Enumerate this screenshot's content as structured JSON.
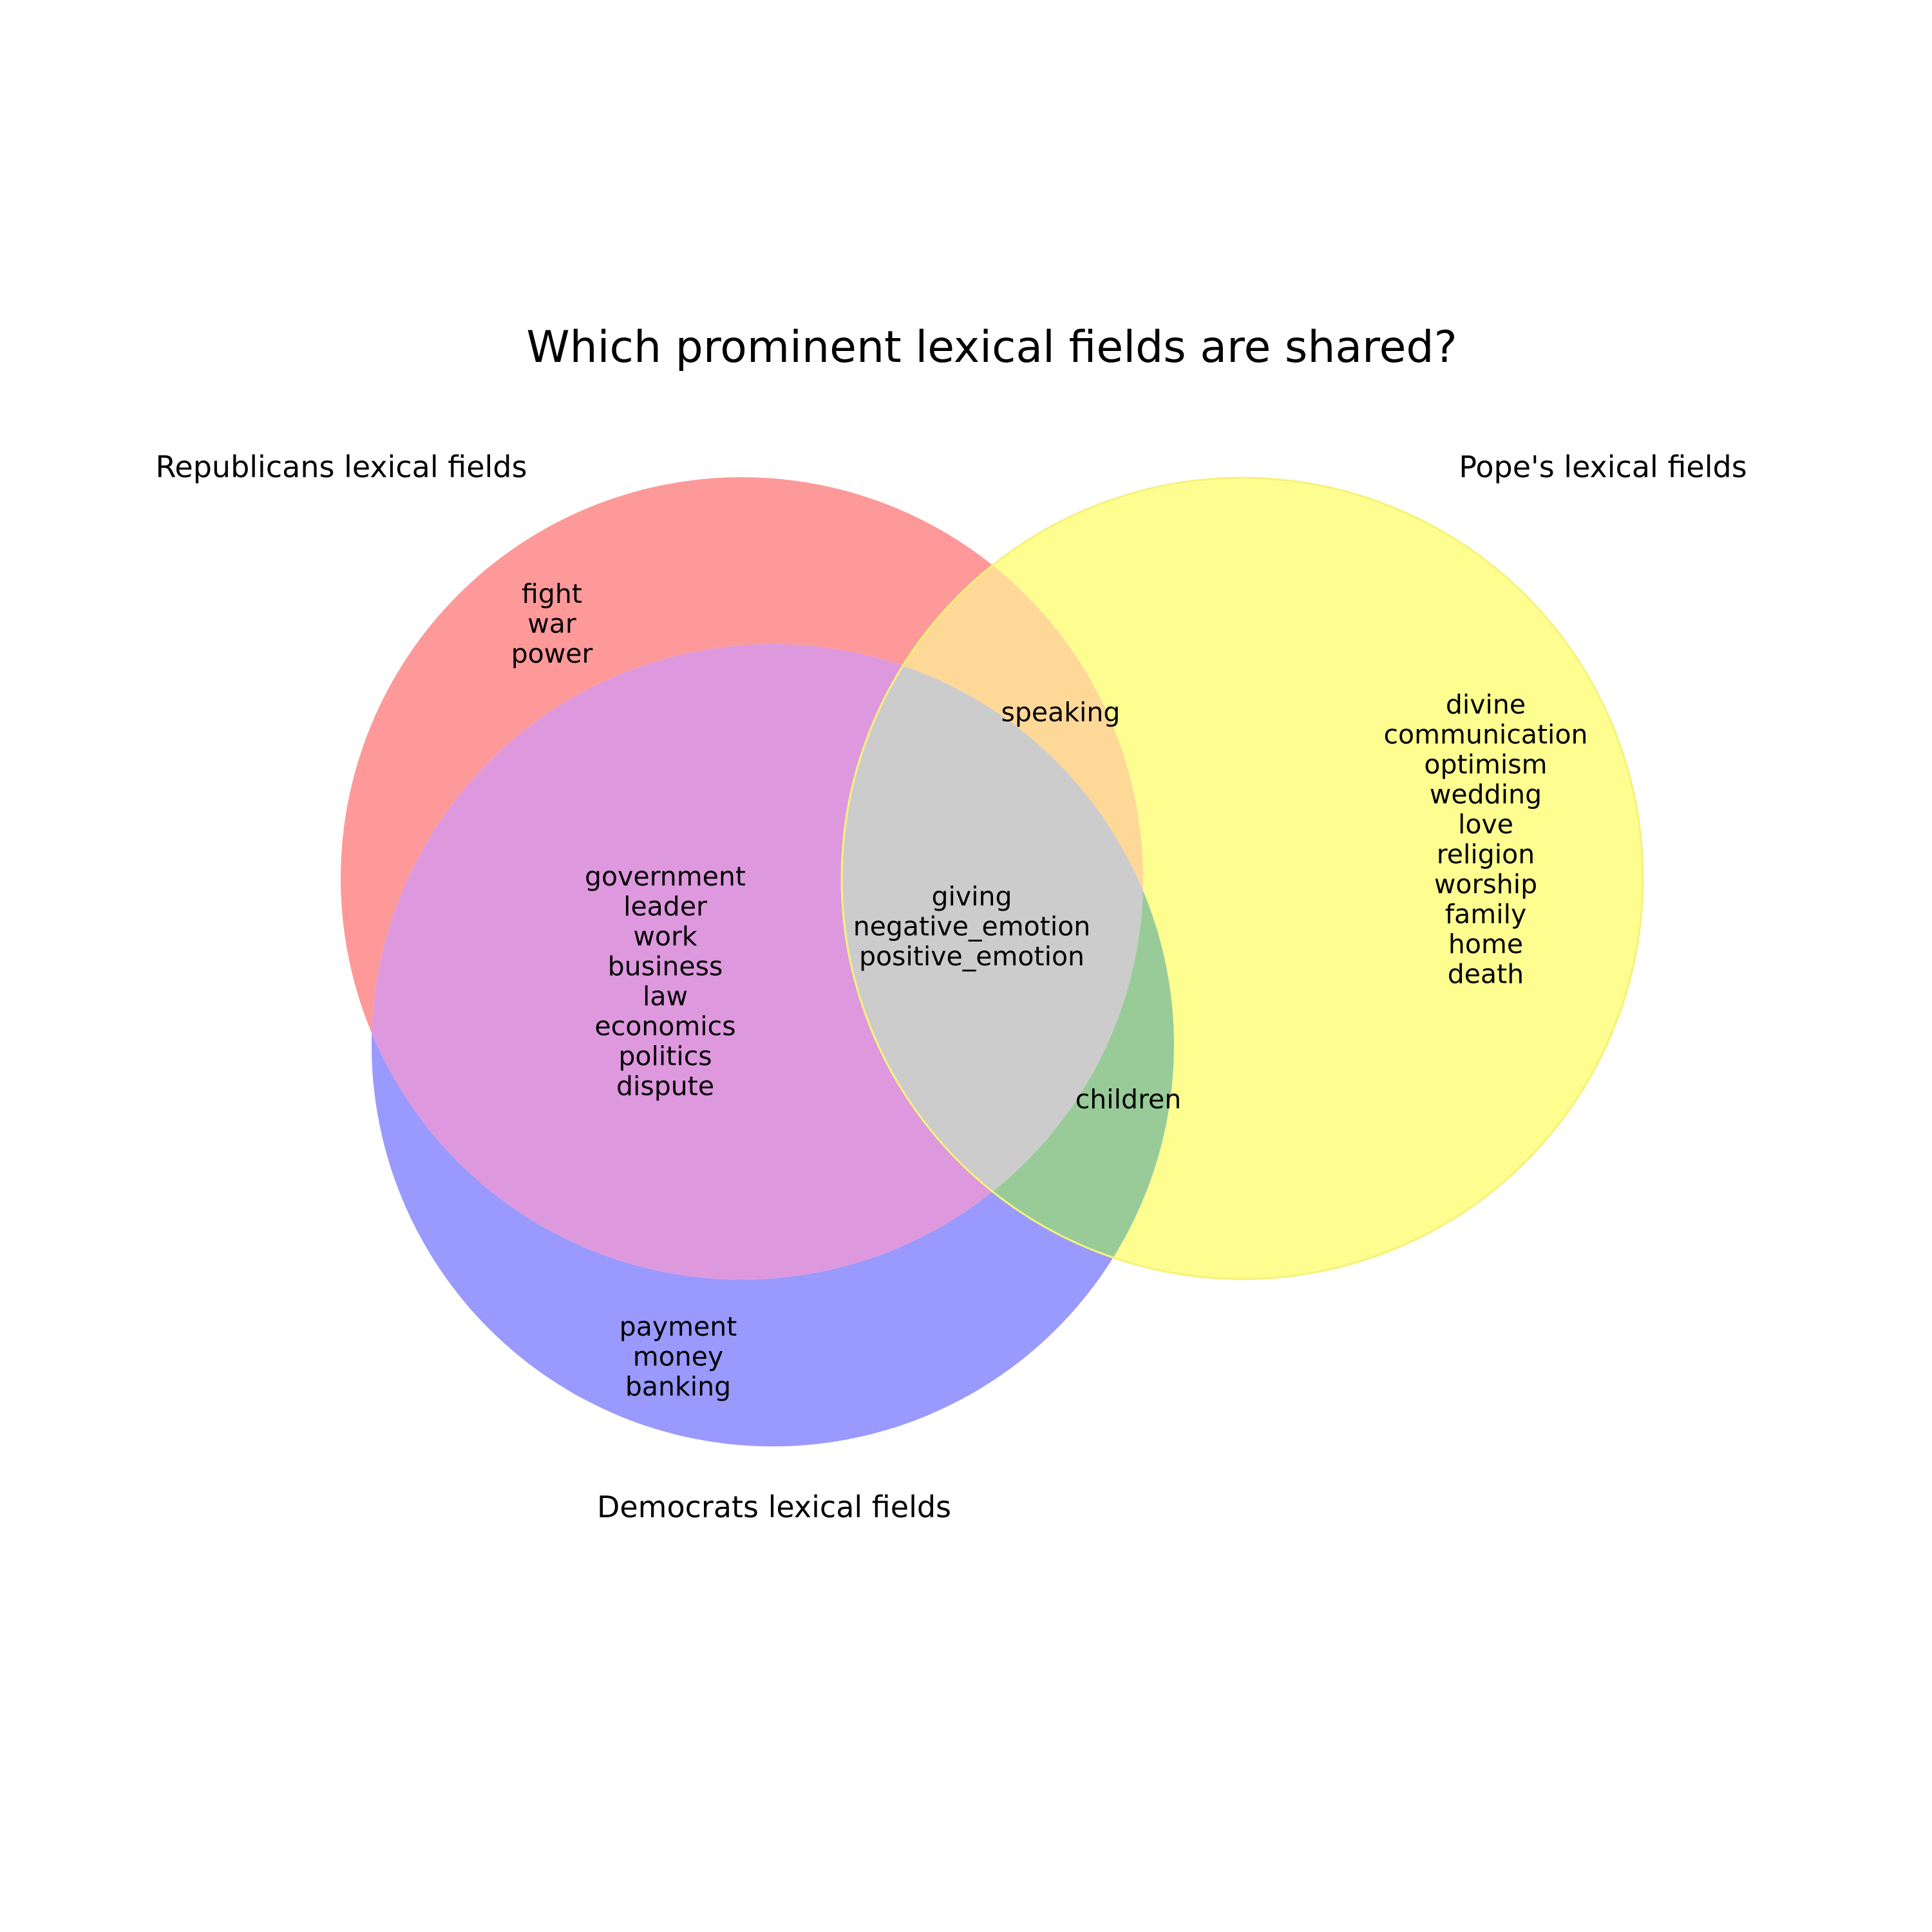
{
  "title": "Which prominent lexical fields are shared?",
  "sets": [
    {
      "id": "republicans",
      "label": "Republicans lexical fields",
      "color": "#ff0000"
    },
    {
      "id": "pope",
      "label": "Pope's lexical fields",
      "color": "#ffff00"
    },
    {
      "id": "democrats",
      "label": "Democrats lexical fields",
      "color": "#0000ff"
    }
  ],
  "regions": {
    "republicans_only": [
      "fight",
      "war",
      "power"
    ],
    "pope_only": [
      "divine",
      "communication",
      "optimism",
      "wedding",
      "love",
      "religion",
      "worship",
      "family",
      "home",
      "death"
    ],
    "democrats_only": [
      "payment",
      "money",
      "banking"
    ],
    "republicans_democrats": [
      "government",
      "leader",
      "work",
      "business",
      "law",
      "economics",
      "politics",
      "dispute"
    ],
    "republicans_pope": [
      "speaking"
    ],
    "pope_democrats": [
      "children"
    ],
    "all_three": [
      "giving",
      "negative_emotion",
      "positive_emotion"
    ]
  }
}
